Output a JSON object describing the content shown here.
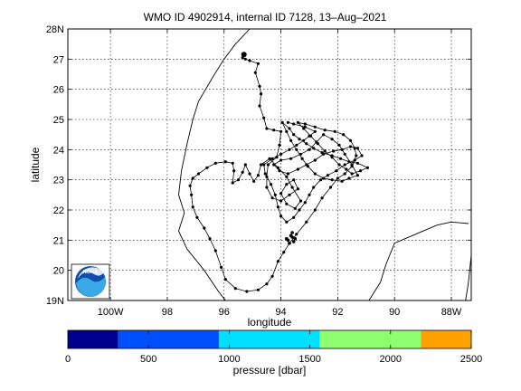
{
  "title": "WMO ID 4902914, internal ID 7128, 13–Aug–2021",
  "map": {
    "xlabel": "longitude",
    "ylabel": "latitude",
    "lon_range": [
      -101.5,
      -87.3
    ],
    "lat_range": [
      19,
      28
    ],
    "x_ticks": [
      {
        "value": -100,
        "label": "100W"
      },
      {
        "value": -98,
        "label": "98"
      },
      {
        "value": -96,
        "label": "96"
      },
      {
        "value": -94,
        "label": "94"
      },
      {
        "value": -92,
        "label": "92"
      },
      {
        "value": -90,
        "label": "90"
      },
      {
        "value": -88,
        "label": "88W"
      }
    ],
    "y_ticks": [
      {
        "value": 19,
        "label": "19N"
      },
      {
        "value": 20,
        "label": "20"
      },
      {
        "value": 21,
        "label": "21"
      },
      {
        "value": 22,
        "label": "22"
      },
      {
        "value": 23,
        "label": "23"
      },
      {
        "value": 24,
        "label": "24"
      },
      {
        "value": 25,
        "label": "25"
      },
      {
        "value": 26,
        "label": "26"
      },
      {
        "value": 27,
        "label": "27"
      },
      {
        "value": 28,
        "label": "28N"
      }
    ],
    "grid": true,
    "logo": "noaa-logo",
    "coastlines": [
      [
        [
          -95.1,
          28
        ],
        [
          -95.6,
          27.5
        ],
        [
          -96.0,
          27.0
        ],
        [
          -96.4,
          26.4
        ],
        [
          -96.9,
          25.6
        ],
        [
          -97.1,
          25.0
        ],
        [
          -97.3,
          24.2
        ],
        [
          -97.5,
          23.3
        ],
        [
          -97.6,
          22.5
        ],
        [
          -97.4,
          21.9
        ],
        [
          -97.6,
          21.3
        ],
        [
          -97.3,
          20.7
        ],
        [
          -96.7,
          20.0
        ],
        [
          -96.2,
          19.3
        ],
        [
          -95.95,
          19.0
        ]
      ],
      [
        [
          -90.9,
          19.0
        ],
        [
          -90.5,
          19.6
        ],
        [
          -90.3,
          20.2
        ],
        [
          -90.0,
          20.9
        ],
        [
          -89.0,
          21.3
        ],
        [
          -88.5,
          21.5
        ],
        [
          -88.0,
          21.6
        ],
        [
          -87.4,
          21.55
        ]
      ],
      [
        [
          -87.5,
          19.0
        ],
        [
          -87.4,
          19.6
        ],
        [
          -87.3,
          20.5
        ]
      ]
    ],
    "trajectory": [
      [
        -95.3,
        27.15
      ],
      [
        -95.35,
        27.05
      ],
      [
        -95.25,
        27.0
      ],
      [
        -95.1,
        26.95
      ],
      [
        -94.8,
        26.85
      ],
      [
        -94.9,
        26.55
      ],
      [
        -94.75,
        26.1
      ],
      [
        -94.7,
        25.85
      ],
      [
        -94.75,
        25.45
      ],
      [
        -94.6,
        25.05
      ],
      [
        -94.5,
        24.7
      ],
      [
        -94.25,
        24.65
      ],
      [
        -94.0,
        24.6
      ],
      [
        -94.05,
        24.15
      ],
      [
        -94.15,
        23.75
      ],
      [
        -94.45,
        23.5
      ],
      [
        -94.5,
        23.1
      ],
      [
        -94.5,
        22.75
      ],
      [
        -94.3,
        22.4
      ],
      [
        -94.0,
        22.3
      ],
      [
        -93.7,
        22.5
      ],
      [
        -93.4,
        22.7
      ],
      [
        -93.55,
        23.0
      ],
      [
        -93.8,
        22.85
      ],
      [
        -94.0,
        22.55
      ],
      [
        -93.8,
        22.2
      ],
      [
        -93.5,
        22.05
      ],
      [
        -93.3,
        22.3
      ],
      [
        -93.6,
        22.75
      ],
      [
        -93.8,
        23.1
      ],
      [
        -94.1,
        23.4
      ],
      [
        -94.4,
        23.7
      ],
      [
        -94.7,
        23.5
      ],
      [
        -94.8,
        23.15
      ],
      [
        -94.95,
        22.95
      ],
      [
        -95.1,
        23.2
      ],
      [
        -95.25,
        23.5
      ],
      [
        -95.35,
        23.25
      ],
      [
        -95.5,
        23.0
      ],
      [
        -95.7,
        22.9
      ],
      [
        -95.65,
        23.3
      ],
      [
        -95.7,
        23.55
      ],
      [
        -95.95,
        23.6
      ],
      [
        -96.3,
        23.55
      ],
      [
        -96.6,
        23.4
      ],
      [
        -96.9,
        23.2
      ],
      [
        -97.1,
        23.05
      ],
      [
        -97.2,
        22.8
      ],
      [
        -97.15,
        22.5
      ],
      [
        -97.1,
        22.1
      ],
      [
        -96.95,
        21.75
      ],
      [
        -96.7,
        21.4
      ],
      [
        -96.5,
        21.05
      ],
      [
        -96.3,
        20.65
      ],
      [
        -96.1,
        20.1
      ],
      [
        -95.95,
        19.7
      ],
      [
        -95.6,
        19.4
      ],
      [
        -95.2,
        19.3
      ],
      [
        -94.8,
        19.35
      ],
      [
        -94.5,
        19.55
      ],
      [
        -94.3,
        19.8
      ],
      [
        -94.1,
        20.3
      ],
      [
        -93.9,
        20.6
      ],
      [
        -93.7,
        20.9
      ],
      [
        -93.45,
        21.2
      ],
      [
        -93.1,
        21.6
      ],
      [
        -92.8,
        22.0
      ],
      [
        -92.55,
        22.4
      ],
      [
        -92.25,
        22.75
      ],
      [
        -92.0,
        23.05
      ],
      [
        -91.75,
        23.2
      ],
      [
        -91.5,
        23.45
      ],
      [
        -91.35,
        23.8
      ],
      [
        -91.4,
        24.05
      ],
      [
        -91.55,
        24.3
      ],
      [
        -91.8,
        24.5
      ],
      [
        -92.1,
        24.6
      ],
      [
        -92.45,
        24.65
      ],
      [
        -92.8,
        24.75
      ],
      [
        -93.15,
        24.85
      ],
      [
        -93.4,
        24.9
      ],
      [
        -93.2,
        24.7
      ],
      [
        -92.95,
        24.45
      ],
      [
        -92.7,
        24.2
      ],
      [
        -92.45,
        23.95
      ],
      [
        -92.2,
        23.75
      ],
      [
        -91.95,
        23.5
      ],
      [
        -91.7,
        23.35
      ],
      [
        -91.5,
        23.2
      ],
      [
        -91.2,
        23.3
      ],
      [
        -90.95,
        23.4
      ],
      [
        -91.3,
        23.55
      ],
      [
        -91.6,
        23.6
      ],
      [
        -91.9,
        23.7
      ],
      [
        -92.2,
        23.8
      ],
      [
        -92.55,
        23.9
      ],
      [
        -92.85,
        24.05
      ],
      [
        -93.1,
        24.2
      ],
      [
        -93.35,
        24.35
      ],
      [
        -93.55,
        24.5
      ],
      [
        -93.7,
        24.7
      ],
      [
        -93.95,
        24.9
      ],
      [
        -93.8,
        24.6
      ],
      [
        -93.65,
        24.3
      ],
      [
        -93.45,
        24.0
      ],
      [
        -93.25,
        23.7
      ],
      [
        -93.05,
        23.45
      ],
      [
        -92.8,
        23.2
      ],
      [
        -92.5,
        23.05
      ],
      [
        -92.2,
        23.0
      ],
      [
        -91.85,
        22.95
      ],
      [
        -91.6,
        23.05
      ],
      [
        -91.3,
        23.15
      ],
      [
        -91.5,
        23.5
      ],
      [
        -91.75,
        23.85
      ],
      [
        -91.95,
        24.15
      ],
      [
        -92.2,
        24.35
      ],
      [
        -92.5,
        24.5
      ],
      [
        -92.75,
        24.25
      ],
      [
        -93.0,
        24.0
      ],
      [
        -93.3,
        23.85
      ],
      [
        -93.65,
        23.7
      ],
      [
        -94.0,
        23.65
      ],
      [
        -94.25,
        23.5
      ],
      [
        -94.05,
        23.3
      ],
      [
        -93.75,
        23.2
      ],
      [
        -93.4,
        23.35
      ],
      [
        -93.1,
        23.5
      ],
      [
        -92.8,
        23.65
      ],
      [
        -92.5,
        23.85
      ],
      [
        -92.15,
        23.95
      ],
      [
        -91.85,
        24.0
      ],
      [
        -91.55,
        24.1
      ],
      [
        -91.3,
        24.05
      ],
      [
        -91.15,
        23.8
      ],
      [
        -91.4,
        23.65
      ],
      [
        -91.75,
        23.5
      ],
      [
        -92.05,
        23.3
      ],
      [
        -92.35,
        23.15
      ],
      [
        -92.6,
        23.0
      ],
      [
        -92.85,
        22.75
      ],
      [
        -93.0,
        22.5
      ],
      [
        -93.15,
        22.25
      ],
      [
        -93.35,
        22.0
      ],
      [
        -93.55,
        21.75
      ],
      [
        -93.8,
        21.6
      ],
      [
        -94.0,
        21.8
      ],
      [
        -94.1,
        22.1
      ],
      [
        -94.2,
        22.5
      ],
      [
        -94.35,
        22.85
      ],
      [
        -94.55,
        23.2
      ],
      [
        -94.6,
        23.5
      ],
      [
        -94.3,
        23.7
      ],
      [
        -94.0,
        23.85
      ],
      [
        -93.7,
        24.0
      ],
      [
        -93.45,
        24.15
      ],
      [
        -93.2,
        24.3
      ],
      [
        -93.0,
        24.45
      ],
      [
        -92.8,
        24.6
      ],
      [
        -93.15,
        24.75
      ],
      [
        -93.55,
        24.85
      ],
      [
        -93.75,
        24.9
      ]
    ],
    "cluster": [
      [
        -93.75,
        21.0
      ],
      [
        -93.6,
        21.1
      ],
      [
        -93.55,
        20.95
      ],
      [
        -93.7,
        20.9
      ],
      [
        -93.65,
        21.15
      ],
      [
        -93.5,
        21.05
      ],
      [
        -93.8,
        21.05
      ],
      [
        -93.6,
        21.25
      ]
    ]
  },
  "colorbar": {
    "label": "pressure [dbar]",
    "range": [
      0,
      2500
    ],
    "ticks": [
      0,
      500,
      1000,
      1500,
      2000,
      2500
    ],
    "segments": [
      {
        "from": 0,
        "to": 312,
        "color": "#00008f"
      },
      {
        "from": 312,
        "to": 937,
        "color": "#0050ff"
      },
      {
        "from": 937,
        "to": 1562,
        "color": "#00dfff"
      },
      {
        "from": 1562,
        "to": 2187,
        "color": "#8fff6f"
      },
      {
        "from": 2187,
        "to": 2500,
        "color": "#ffa200"
      }
    ]
  }
}
